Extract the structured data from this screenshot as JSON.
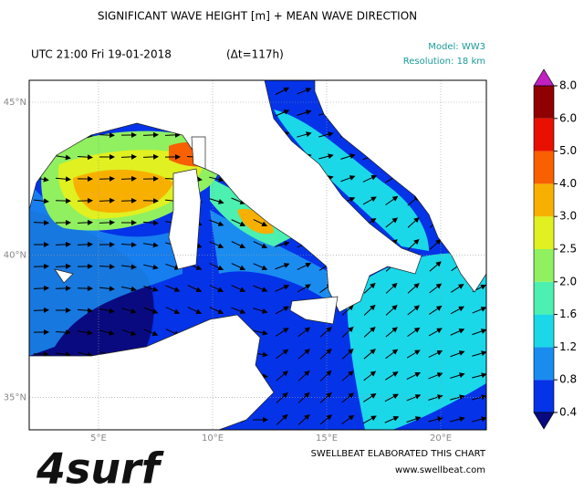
{
  "header": {
    "title": "SIGNIFICANT WAVE HEIGHT [m] + MEAN WAVE DIRECTION",
    "time": "UTC 21:00 Fri 19-01-2018",
    "delta": "(Δt=117h)",
    "model": "Model: WW3",
    "resolution": "Resolution: 18 km"
  },
  "map": {
    "lon_ticks": [
      {
        "value": 5,
        "label": "5°E"
      },
      {
        "value": 10,
        "label": "10°E"
      },
      {
        "value": 15,
        "label": "15°E"
      },
      {
        "value": 20,
        "label": "20°E"
      }
    ],
    "lat_ticks": [
      {
        "value": 45,
        "label": "45°N"
      },
      {
        "value": 40,
        "label": "40°N"
      },
      {
        "value": 35,
        "label": "35°N"
      }
    ]
  },
  "colorbar": {
    "levels": [
      {
        "value": 0.4,
        "label": "0.4"
      },
      {
        "value": 0.8,
        "label": "0.8"
      },
      {
        "value": 1.2,
        "label": "1.2"
      },
      {
        "value": 1.6,
        "label": "1.6"
      },
      {
        "value": 2.0,
        "label": "2.0"
      },
      {
        "value": 2.5,
        "label": "2.5"
      },
      {
        "value": 3.0,
        "label": "3.0"
      },
      {
        "value": 4.0,
        "label": "4.0"
      },
      {
        "value": 5.0,
        "label": "5.0"
      },
      {
        "value": 6.0,
        "label": "6.0"
      },
      {
        "value": 8.0,
        "label": "8.0"
      }
    ],
    "colors": [
      "#0433e8",
      "#1a8cf0",
      "#1ad8e8",
      "#4cf0b0",
      "#90f060",
      "#e0f020",
      "#f8b000",
      "#f86000",
      "#e81000",
      "#900000"
    ],
    "under_color": "#0a0a80",
    "over_color": "#c020c0"
  },
  "footer": {
    "credit": "SWELLBEAT ELABORATED THIS CHART",
    "url": "www.swellbeat.com"
  },
  "logo": {
    "text": "4surf"
  }
}
